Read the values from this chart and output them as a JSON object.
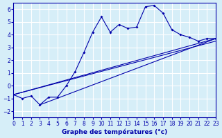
{
  "xlabel": "Graphe des températures (°c)",
  "bg_color": "#d6eef8",
  "grid_color": "#ffffff",
  "line_color": "#0000aa",
  "xlim": [
    0,
    23
  ],
  "ylim": [
    -2.5,
    6.5
  ],
  "yticks": [
    -2,
    -1,
    0,
    1,
    2,
    3,
    4,
    5,
    6
  ],
  "xticks": [
    0,
    1,
    2,
    3,
    4,
    5,
    6,
    7,
    8,
    9,
    10,
    11,
    12,
    13,
    14,
    15,
    16,
    17,
    18,
    19,
    20,
    21,
    22,
    23
  ],
  "line1_x": [
    0,
    1,
    2,
    3,
    4,
    5,
    6,
    7,
    8,
    9,
    10,
    11,
    12,
    13,
    14,
    15,
    16,
    17,
    18,
    19,
    20,
    21,
    22,
    23
  ],
  "line1_y": [
    -0.7,
    -1.0,
    -0.8,
    -1.5,
    -0.9,
    -0.9,
    0.0,
    1.1,
    2.6,
    4.2,
    5.4,
    4.2,
    4.8,
    4.5,
    4.6,
    6.2,
    6.3,
    5.7,
    4.4,
    4.0,
    3.8,
    3.5,
    3.7,
    3.7
  ],
  "line2_x": [
    0,
    23
  ],
  "line2_y": [
    -0.7,
    3.7
  ],
  "line3_x": [
    0,
    23
  ],
  "line3_y": [
    -0.7,
    3.5
  ],
  "line4_x": [
    3,
    23
  ],
  "line4_y": [
    -1.5,
    3.7
  ]
}
